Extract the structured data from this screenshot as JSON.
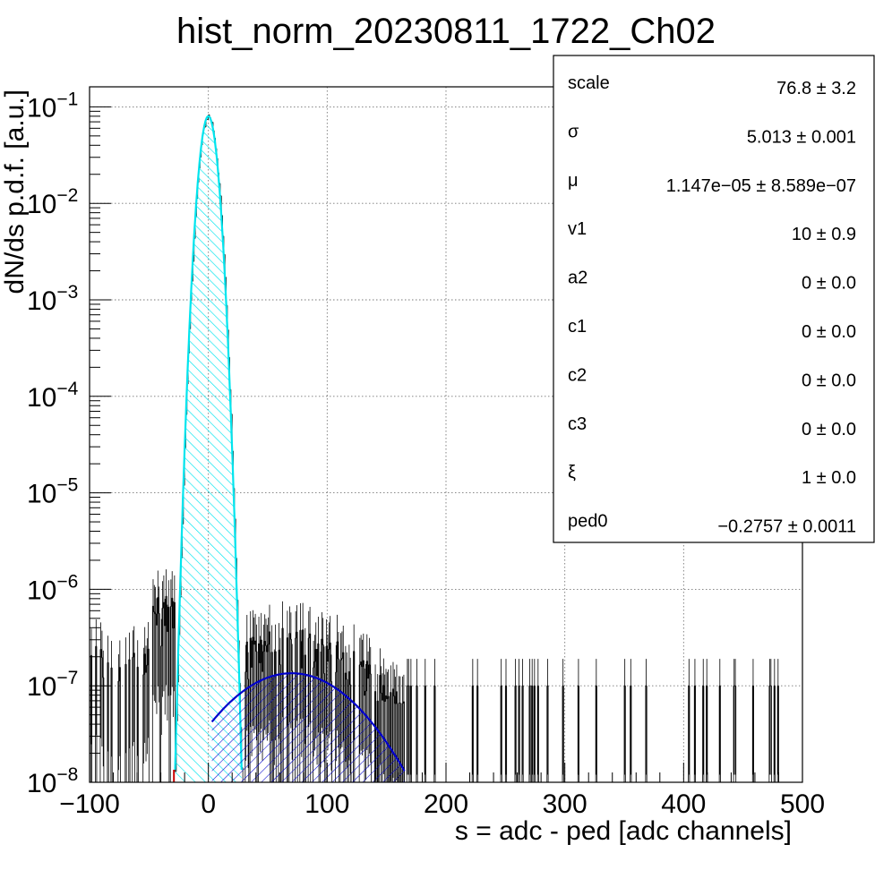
{
  "chart_data": {
    "type": "histogram",
    "title": "hist_norm_20230811_1722_Ch02",
    "xlabel": "s = adc - ped [adc channels]",
    "ylabel": "dN/ds p.d.f. [a.u.]",
    "xlim": [
      -100,
      500
    ],
    "ylim": [
      1e-08,
      0.15
    ],
    "yscale": "log",
    "grid": true,
    "x_ticks": [
      "−100",
      "0",
      "100",
      "200",
      "300",
      "400",
      "500"
    ],
    "y_ticks": [
      {
        "base": "10",
        "exp": "−1"
      },
      {
        "base": "10",
        "exp": "−2"
      },
      {
        "base": "10",
        "exp": "−3"
      },
      {
        "base": "10",
        "exp": "−4"
      },
      {
        "base": "10",
        "exp": "−5"
      },
      {
        "base": "10",
        "exp": "−6"
      },
      {
        "base": "10",
        "exp": "−7"
      },
      {
        "base": "10",
        "exp": "−8"
      }
    ],
    "series": [
      {
        "style": "cyan hatched pedestal gaussian",
        "color": "#00e5ee",
        "peak_x": 0,
        "peak_y": 0.08,
        "sigma": 5.013,
        "x_range": [
          -28,
          28
        ]
      },
      {
        "style": "blue hatched signal component",
        "color": "#0000cc",
        "peak_x": 70,
        "peak_y": 1.35e-07,
        "x_range": [
          3,
          165
        ]
      },
      {
        "style": "black histogram with error bars",
        "color": "#000000",
        "peak_x": 0,
        "peak_y": 0.08
      }
    ],
    "stats_box": [
      {
        "name": "scale",
        "value": "76.8",
        "error": "3.2"
      },
      {
        "name": "σ",
        "value": "5.013",
        "error": "0.001"
      },
      {
        "name": "μ",
        "value": "1.147e−05",
        "error": "8.589e−07"
      },
      {
        "name": "v1",
        "value": "10",
        "error": "0.9"
      },
      {
        "name": "a2",
        "value": "0",
        "error": "0.0"
      },
      {
        "name": "c1",
        "value": "0",
        "error": "0.0"
      },
      {
        "name": "c2",
        "value": "0",
        "error": "0.0"
      },
      {
        "name": "c3",
        "value": "0",
        "error": "0.0"
      },
      {
        "name": "ξ",
        "value": "1",
        "error": "0.0"
      },
      {
        "name": "ped0",
        "value": "−0.2757",
        "error": "0.0011"
      }
    ]
  },
  "colors": {
    "pedestal": "#00e5ee",
    "signal": "#0000cc",
    "data": "#000000",
    "tail": "#cc0000"
  }
}
